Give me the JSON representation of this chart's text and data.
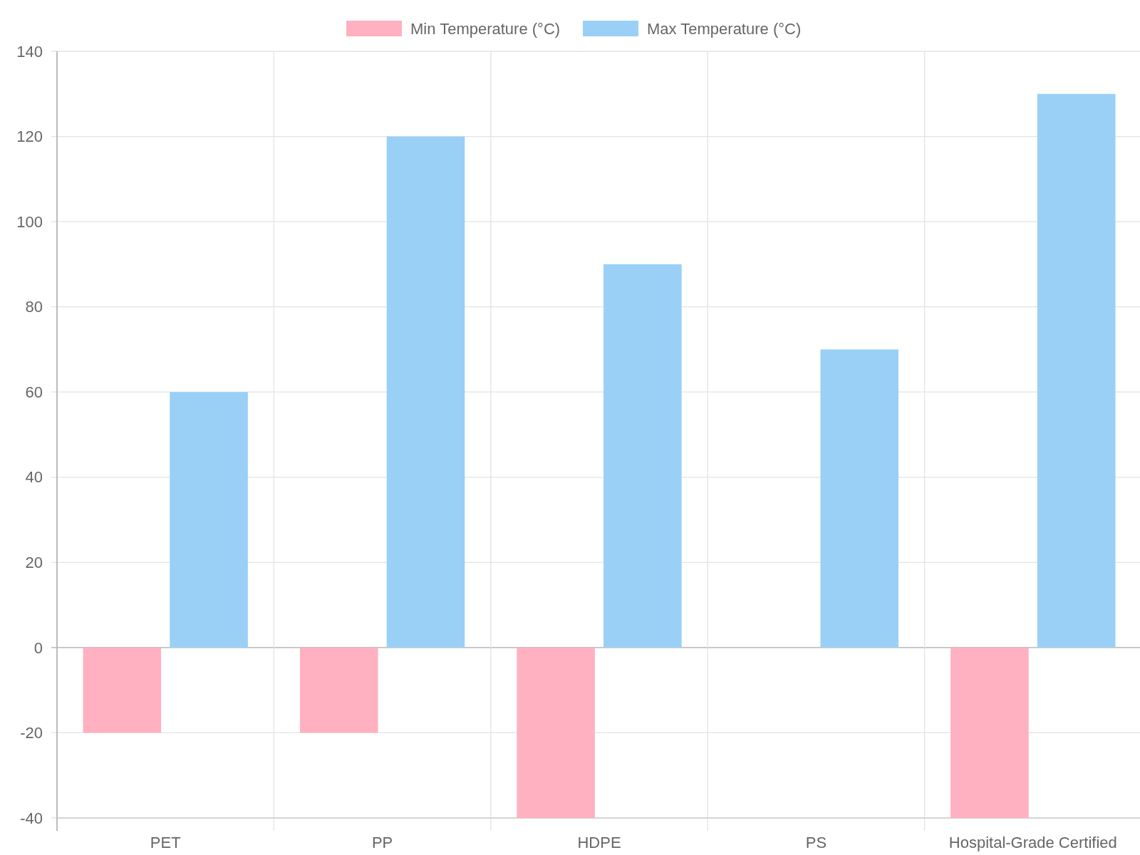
{
  "chart_data": {
    "type": "bar",
    "categories": [
      "PET",
      "PP",
      "HDPE",
      "PS",
      "Hospital-Grade Certified"
    ],
    "series": [
      {
        "name": "Min Temperature (°C)",
        "color": "#ffb1c1",
        "values": [
          -20,
          -20,
          -40,
          0,
          -40
        ]
      },
      {
        "name": "Max Temperature (°C)",
        "color": "#9ad0f5",
        "values": [
          60,
          120,
          90,
          70,
          130
        ]
      }
    ],
    "ylim": [
      -40,
      140
    ],
    "yticks": [
      -40,
      -20,
      0,
      20,
      40,
      60,
      80,
      100,
      120,
      140
    ],
    "grid": true,
    "legend": "top"
  }
}
